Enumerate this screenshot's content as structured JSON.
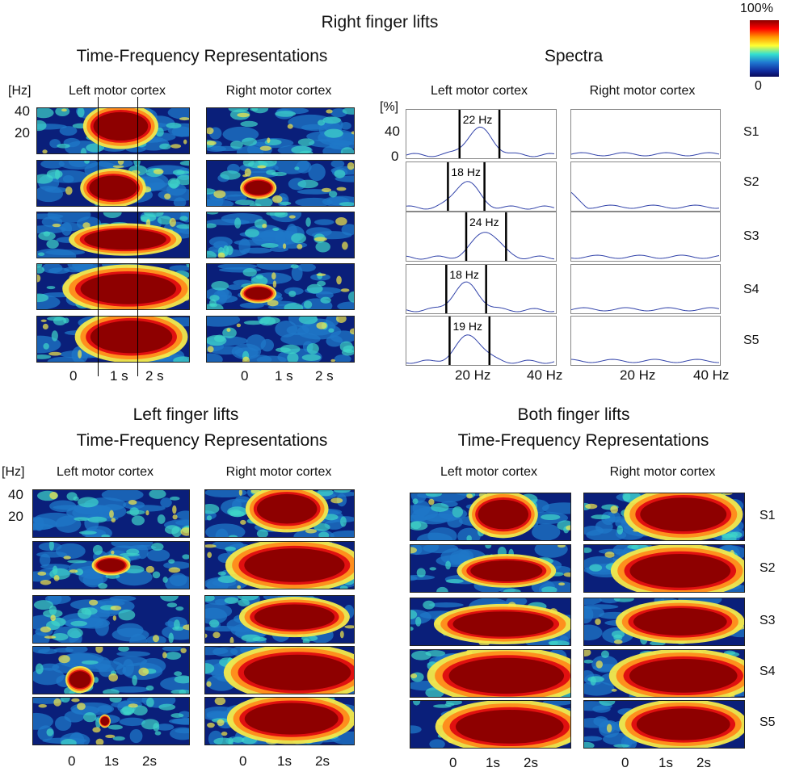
{
  "colorbar": {
    "max_label": "100%",
    "min_label": "0"
  },
  "right_lifts": {
    "title": "Right finger lifts",
    "tfr_title": "Time-Frequency Representations",
    "spectra_title": "Spectra",
    "col_left": "Left motor cortex",
    "col_right": "Right motor cortex",
    "hz_label": "[Hz]",
    "hz_ticks": [
      "40",
      "20"
    ],
    "time_ticks": [
      "0",
      "1 s",
      "2 s"
    ],
    "spectra_unit": "[%]",
    "spectra_yticks": [
      "40",
      "0"
    ],
    "spectra_xticks": [
      "20 Hz",
      "40 Hz"
    ],
    "peaks": [
      {
        "subject": "S1",
        "peak_label": "22 Hz",
        "peak_hz": 22
      },
      {
        "subject": "S2",
        "peak_label": "18 Hz",
        "peak_hz": 18
      },
      {
        "subject": "S3",
        "peak_label": "24 Hz",
        "peak_hz": 24
      },
      {
        "subject": "S4",
        "peak_label": "18 Hz",
        "peak_hz": 18
      },
      {
        "subject": "S5",
        "peak_label": "19 Hz",
        "peak_hz": 19
      }
    ]
  },
  "left_lifts": {
    "title": "Left finger lifts",
    "tfr_title": "Time-Frequency Representations",
    "col_left": "Left motor cortex",
    "col_right": "Right motor cortex",
    "hz_label": "[Hz]",
    "hz_ticks": [
      "40",
      "20"
    ],
    "time_ticks": [
      "0",
      "1s",
      "2s"
    ]
  },
  "both_lifts": {
    "title": "Both finger lifts",
    "tfr_title": "Time-Frequency Representations",
    "col_left": "Left motor cortex",
    "col_right": "Right motor cortex",
    "time_ticks": [
      "0",
      "1s",
      "2s"
    ]
  },
  "subjects": [
    "S1",
    "S2",
    "S3",
    "S4",
    "S5"
  ]
}
